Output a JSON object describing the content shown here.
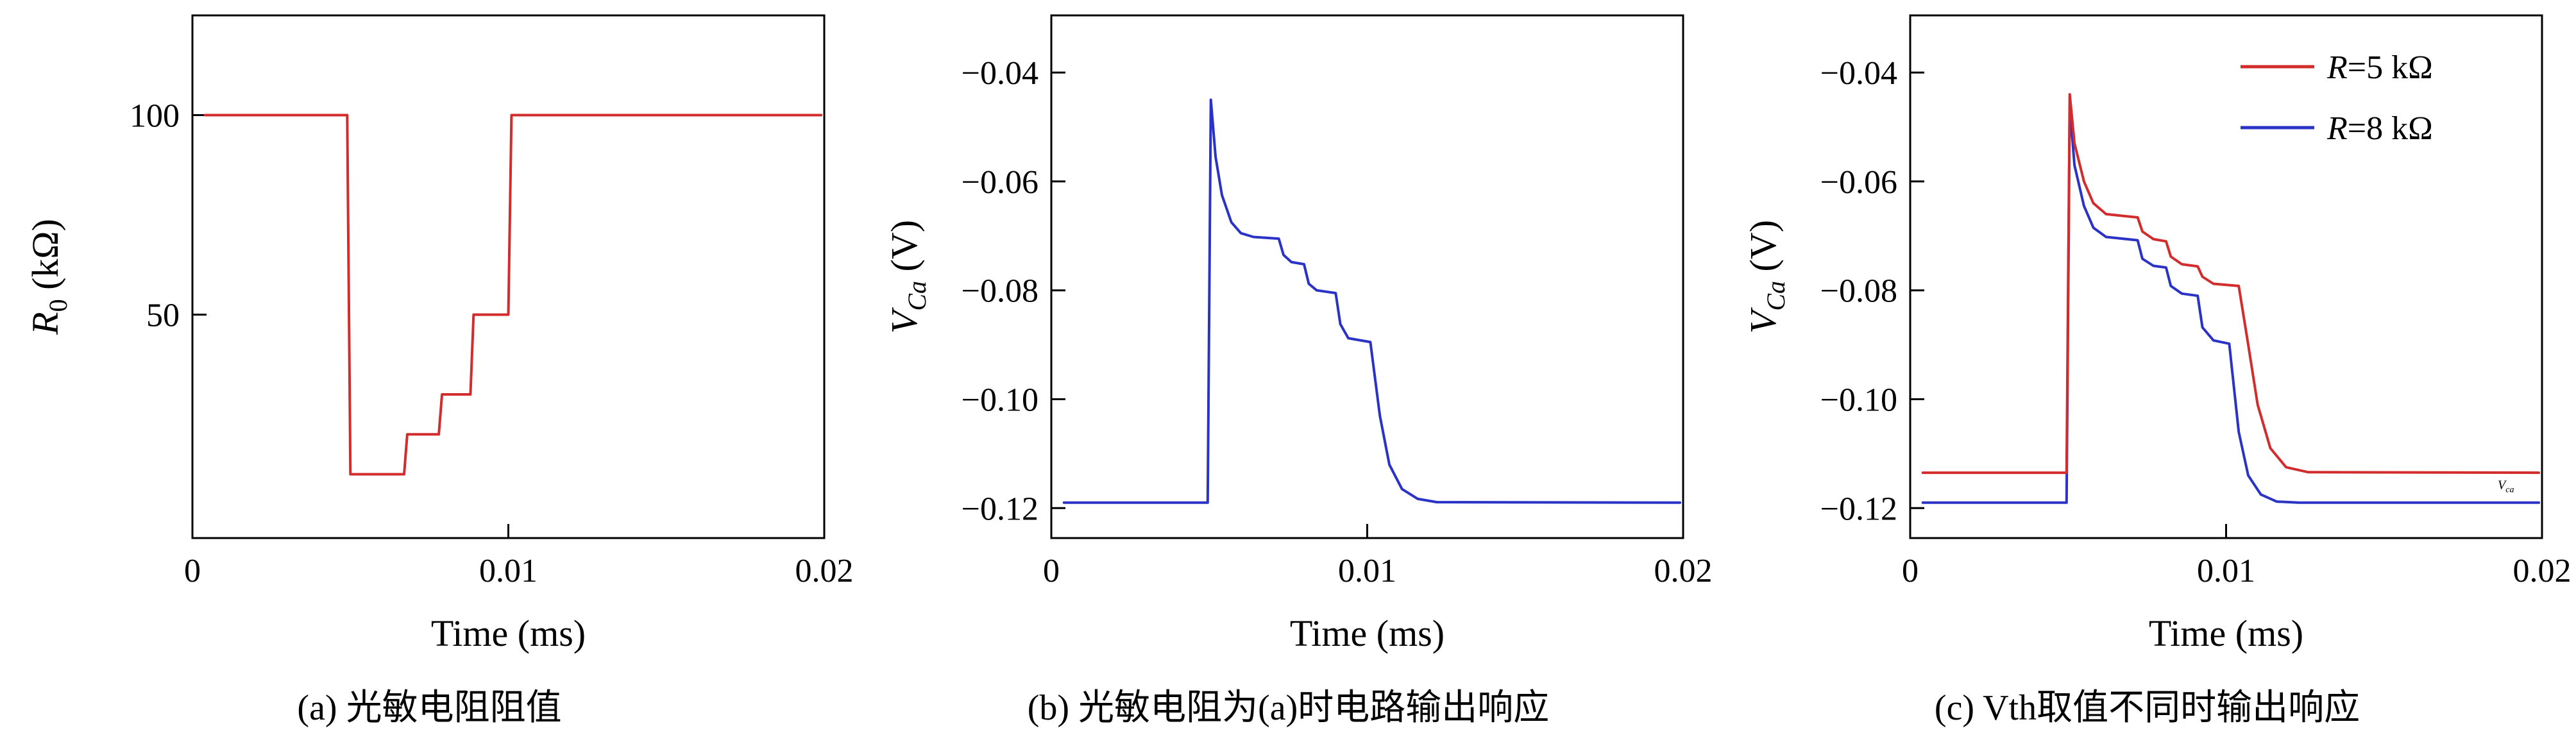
{
  "figure": {
    "background": "#ffffff",
    "frame_color": "#000000"
  },
  "chart_data": [
    {
      "id": "a",
      "type": "line",
      "caption": "(a) 光敏电阻阻值",
      "xlabel": "Time (ms)",
      "ylabel": {
        "var": "R",
        "sub": "0",
        "sub_italic": false,
        "unit": " (kΩ)"
      },
      "xlim": [
        0,
        0.02
      ],
      "ylim": [
        -6,
        125
      ],
      "xticks": {
        "values": [
          0,
          0.01,
          0.02
        ],
        "labels": [
          "0",
          "0.01",
          "0.02"
        ]
      },
      "yticks": {
        "values": [
          50,
          100
        ],
        "labels": [
          "50",
          "100"
        ]
      },
      "grid": false,
      "series": [
        {
          "name": "R0",
          "color": "#d22c2c",
          "points": [
            [
              0.0004,
              100
            ],
            [
              0.0049,
              100
            ],
            [
              0.005,
              10
            ],
            [
              0.0067,
              10
            ],
            [
              0.0068,
              20
            ],
            [
              0.0078,
              20
            ],
            [
              0.0079,
              30
            ],
            [
              0.0088,
              30
            ],
            [
              0.0089,
              50
            ],
            [
              0.01,
              50
            ],
            [
              0.0101,
              100
            ],
            [
              0.0199,
              100
            ]
          ]
        }
      ]
    },
    {
      "id": "b",
      "type": "line",
      "caption": "(b) 光敏电阻为(a)时电路输出响应",
      "xlabel": "Time (ms)",
      "ylabel": {
        "var": "V",
        "sub": "Ca",
        "sub_italic": true,
        "unit": " (V)"
      },
      "xlim": [
        0,
        0.02
      ],
      "ylim": [
        -0.1255,
        -0.0295
      ],
      "xticks": {
        "values": [
          0,
          0.01,
          0.02
        ],
        "labels": [
          "0",
          "0.01",
          "0.02"
        ]
      },
      "yticks": {
        "values": [
          -0.04,
          -0.06,
          -0.08,
          -0.1,
          -0.12
        ],
        "labels": [
          "−0.04",
          "−0.06",
          "−0.08",
          "−0.10",
          "−0.12"
        ]
      },
      "grid": false,
      "series": [
        {
          "name": "V_Ca",
          "color": "#2a33c6",
          "points": [
            [
              0.0004,
              -0.119
            ],
            [
              0.00495,
              -0.119
            ],
            [
              0.00505,
              -0.045
            ],
            [
              0.0052,
              -0.0555
            ],
            [
              0.0054,
              -0.0625
            ],
            [
              0.0057,
              -0.0675
            ],
            [
              0.006,
              -0.0695
            ],
            [
              0.0064,
              -0.0702
            ],
            [
              0.0072,
              -0.0705
            ],
            [
              0.00735,
              -0.0735
            ],
            [
              0.0076,
              -0.0748
            ],
            [
              0.008,
              -0.0752
            ],
            [
              0.00815,
              -0.0788
            ],
            [
              0.0084,
              -0.08
            ],
            [
              0.009,
              -0.0805
            ],
            [
              0.00915,
              -0.0862
            ],
            [
              0.0094,
              -0.0888
            ],
            [
              0.0101,
              -0.0895
            ],
            [
              0.0104,
              -0.103
            ],
            [
              0.0107,
              -0.112
            ],
            [
              0.0111,
              -0.1165
            ],
            [
              0.0116,
              -0.1183
            ],
            [
              0.0122,
              -0.1189
            ],
            [
              0.0199,
              -0.119
            ]
          ]
        }
      ]
    },
    {
      "id": "c",
      "type": "line",
      "caption": "(c) Vth取值不同时输出响应",
      "xlabel": "Time (ms)",
      "ylabel": {
        "var": "V",
        "sub": "Ca",
        "sub_italic": true,
        "unit": " (V)"
      },
      "xlim": [
        0,
        0.02
      ],
      "ylim": [
        -0.1255,
        -0.0295
      ],
      "xticks": {
        "values": [
          0,
          0.01,
          0.02
        ],
        "labels": [
          "0",
          "0.01",
          "0.02"
        ]
      },
      "yticks": {
        "values": [
          -0.04,
          -0.06,
          -0.08,
          -0.1,
          -0.12
        ],
        "labels": [
          "−0.04",
          "−0.06",
          "−0.08",
          "−0.10",
          "−0.12"
        ]
      },
      "grid": false,
      "legend": [
        {
          "var": "R",
          "rest": "=5 kΩ",
          "color": "#d22c2c"
        },
        {
          "var": "R",
          "rest": "=8 kΩ",
          "color": "#2a33c6"
        }
      ],
      "annotations": [
        {
          "x": 0.0186,
          "y": -0.1165,
          "var": "V",
          "sub": "ca"
        }
      ],
      "series": [
        {
          "name": "R=5 kΩ",
          "color": "#d22c2c",
          "points": [
            [
              0.0004,
              -0.1135
            ],
            [
              0.00495,
              -0.1135
            ],
            [
              0.00505,
              -0.044
            ],
            [
              0.0052,
              -0.053
            ],
            [
              0.0055,
              -0.06
            ],
            [
              0.0058,
              -0.064
            ],
            [
              0.0062,
              -0.066
            ],
            [
              0.0072,
              -0.0666
            ],
            [
              0.00735,
              -0.0692
            ],
            [
              0.0077,
              -0.0706
            ],
            [
              0.0081,
              -0.071
            ],
            [
              0.00825,
              -0.0738
            ],
            [
              0.0086,
              -0.0752
            ],
            [
              0.0091,
              -0.0756
            ],
            [
              0.00925,
              -0.0775
            ],
            [
              0.0096,
              -0.0788
            ],
            [
              0.0104,
              -0.0792
            ],
            [
              0.0107,
              -0.09
            ],
            [
              0.011,
              -0.101
            ],
            [
              0.0114,
              -0.109
            ],
            [
              0.0119,
              -0.1125
            ],
            [
              0.0126,
              -0.1134
            ],
            [
              0.0199,
              -0.1135
            ]
          ]
        },
        {
          "name": "R=8 kΩ",
          "color": "#2a33c6",
          "points": [
            [
              0.0004,
              -0.119
            ],
            [
              0.00495,
              -0.119
            ],
            [
              0.00505,
              -0.046
            ],
            [
              0.0052,
              -0.057
            ],
            [
              0.0055,
              -0.0645
            ],
            [
              0.0058,
              -0.0685
            ],
            [
              0.0062,
              -0.0702
            ],
            [
              0.0072,
              -0.0708
            ],
            [
              0.00735,
              -0.0742
            ],
            [
              0.0077,
              -0.0755
            ],
            [
              0.0081,
              -0.0758
            ],
            [
              0.00825,
              -0.0792
            ],
            [
              0.0086,
              -0.0806
            ],
            [
              0.0091,
              -0.081
            ],
            [
              0.00925,
              -0.0868
            ],
            [
              0.0096,
              -0.0892
            ],
            [
              0.0101,
              -0.0898
            ],
            [
              0.0104,
              -0.106
            ],
            [
              0.0107,
              -0.114
            ],
            [
              0.0111,
              -0.1175
            ],
            [
              0.0116,
              -0.1188
            ],
            [
              0.0123,
              -0.119
            ],
            [
              0.0199,
              -0.119
            ]
          ]
        }
      ]
    }
  ]
}
